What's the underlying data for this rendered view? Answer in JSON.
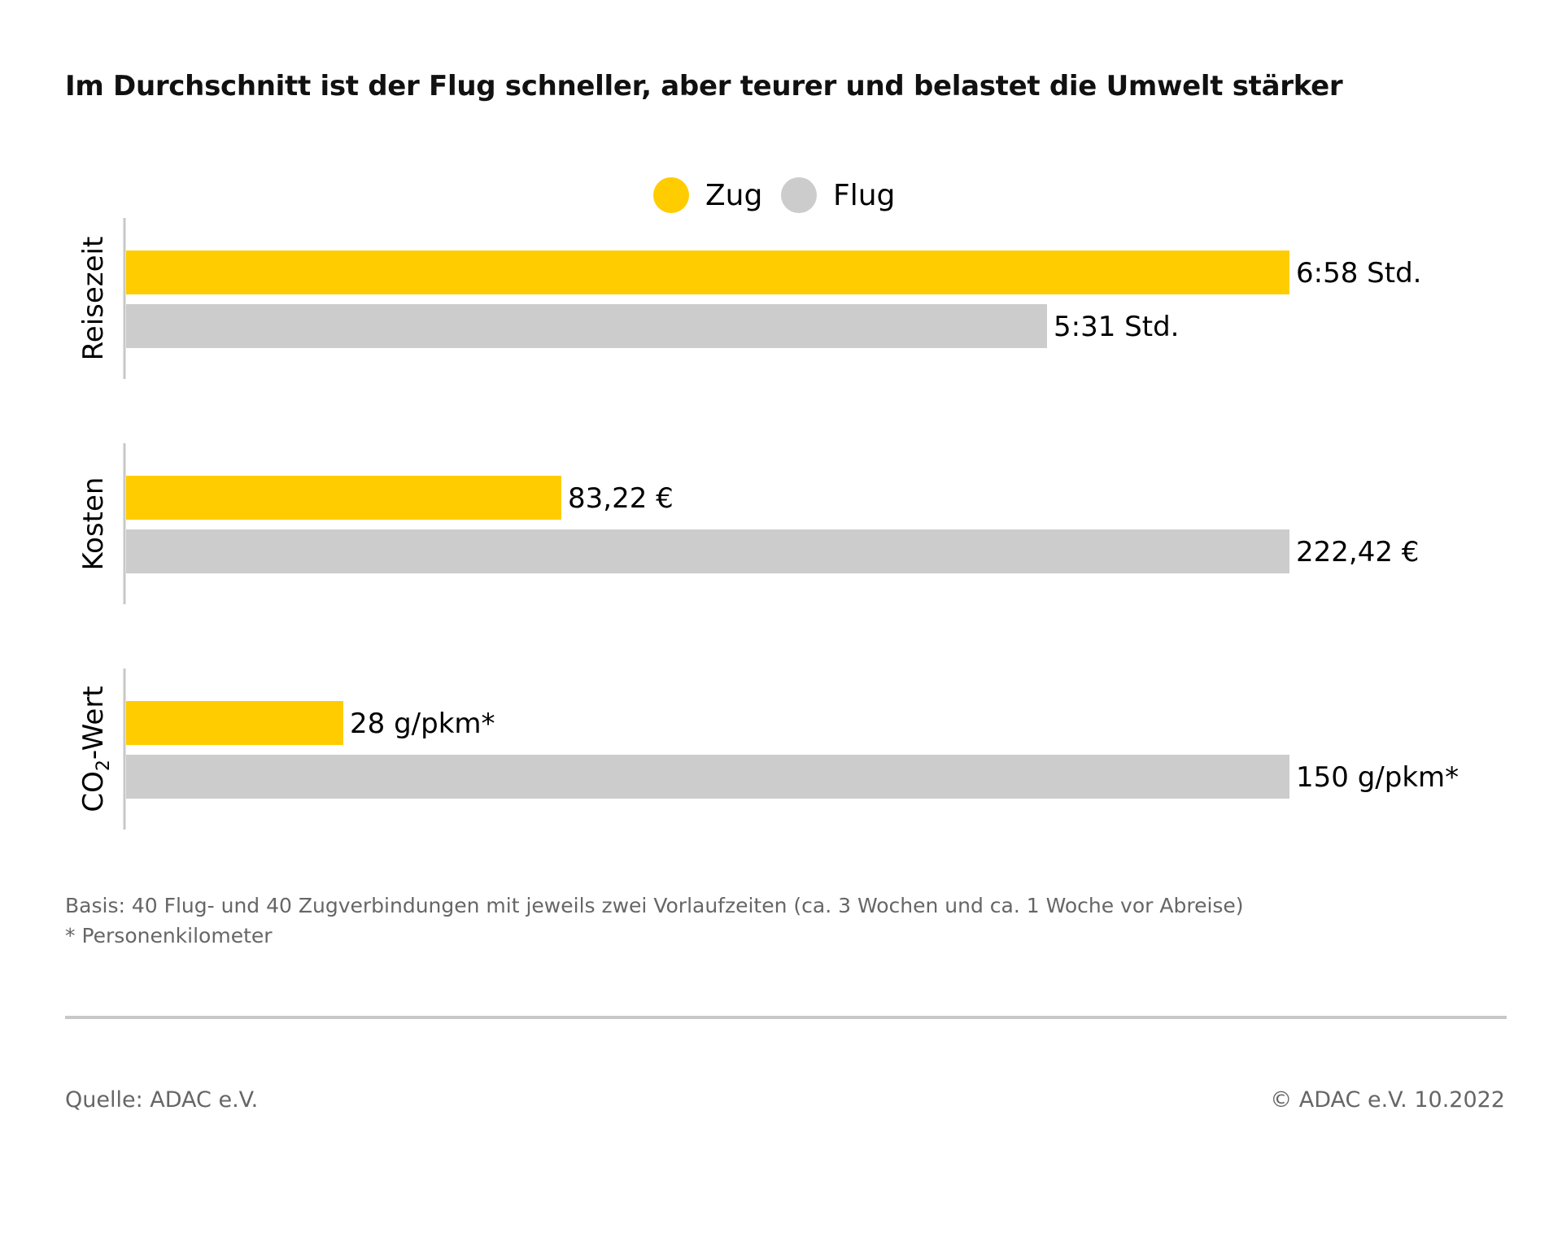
{
  "title": "Im Durchschnitt ist der Flug schneller, aber teurer und belastet die Umwelt stärker",
  "legend": {
    "items": [
      {
        "label": "Zug",
        "color": "#FFCC00"
      },
      {
        "label": "Flug",
        "color": "#CCCCCC"
      }
    ]
  },
  "chart_data": {
    "type": "bar",
    "orientation": "horizontal",
    "groups": [
      {
        "category": "Reisezeit",
        "unit": "Std.",
        "values": [
          {
            "series": "Zug",
            "value": 6.967,
            "label": "6:58 Std."
          },
          {
            "series": "Flug",
            "value": 5.517,
            "label": "5:31 Std."
          }
        ]
      },
      {
        "category": "Kosten",
        "unit": "€",
        "values": [
          {
            "series": "Zug",
            "value": 83.22,
            "label": "83,22 €"
          },
          {
            "series": "Flug",
            "value": 222.42,
            "label": "222,42 €"
          }
        ]
      },
      {
        "category": "CO2-Wert",
        "unit": "g/pkm",
        "values": [
          {
            "series": "Zug",
            "value": 28,
            "label": "28 g/pkm*"
          },
          {
            "series": "Flug",
            "value": 150,
            "label": "150 g/pkm*"
          }
        ]
      }
    ],
    "colors": {
      "Zug": "#FFCC00",
      "Flug": "#CCCCCC"
    },
    "legend_position": "top-center"
  },
  "footnotes": {
    "basis": "Basis: 40 Flug- und 40 Zugverbindungen mit jeweils zwei Vorlaufzeiten (ca. 3 Wochen und ca. 1 Woche vor Abreise)",
    "asterisk": "* Personenkilometer"
  },
  "footer": {
    "source": "Quelle: ADAC e.V.",
    "copyright": "© ADAC e.V. 10.2022"
  }
}
